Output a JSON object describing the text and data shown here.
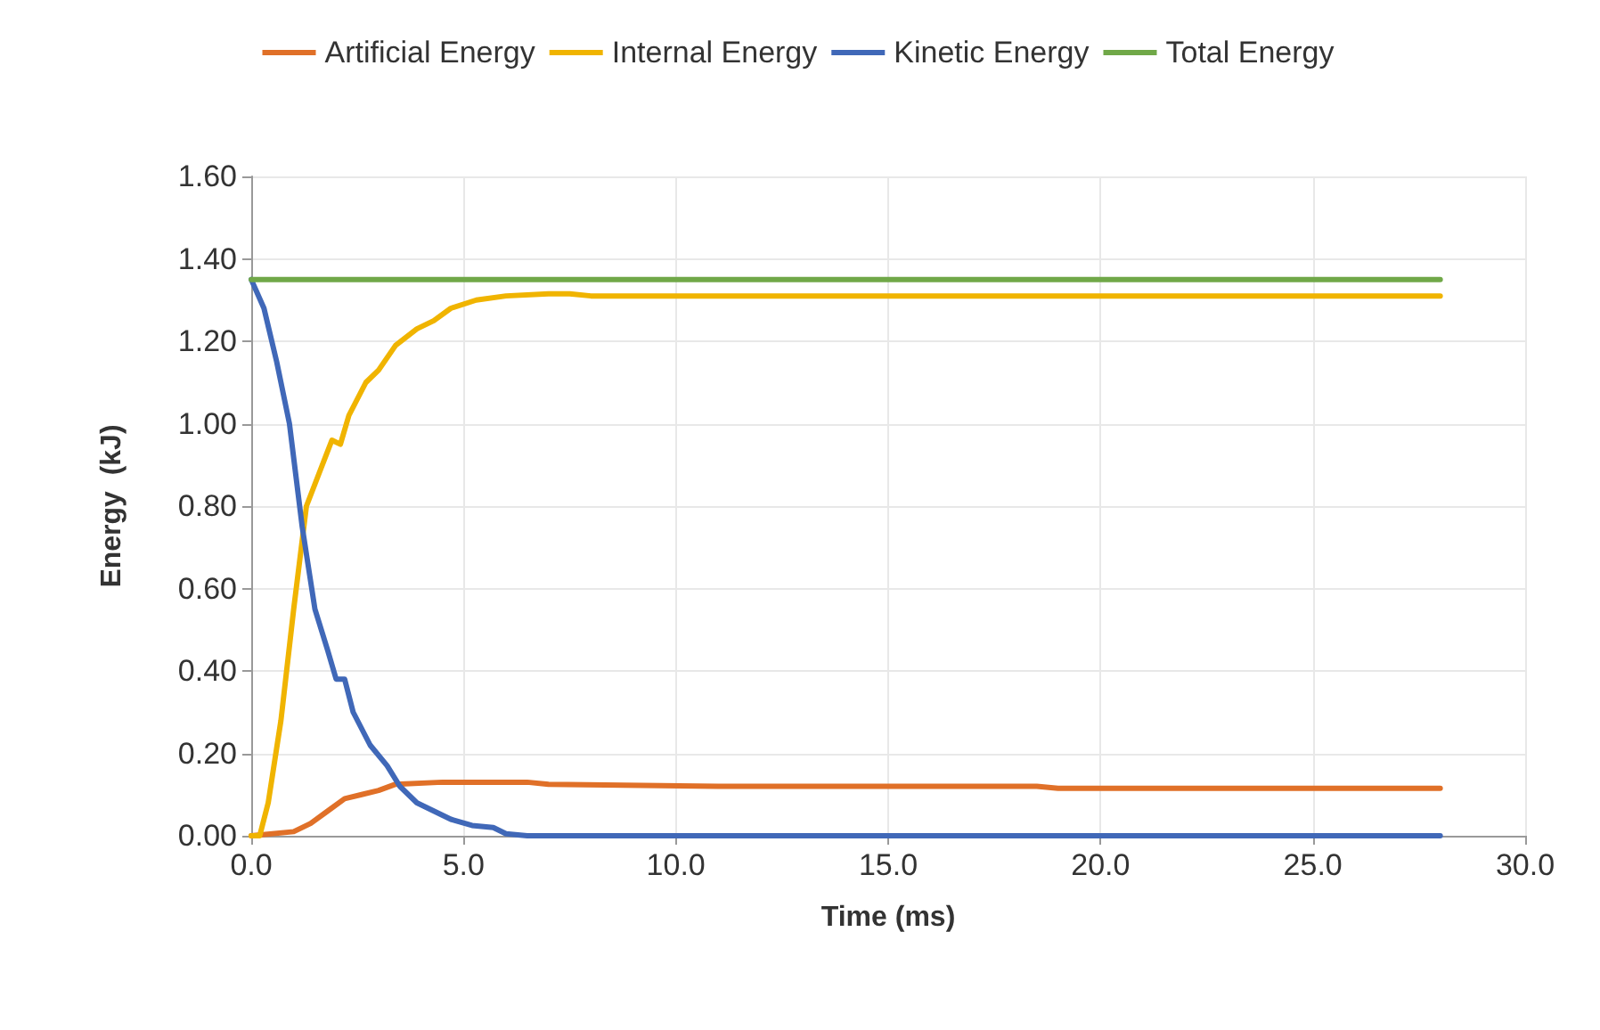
{
  "chart_data": {
    "type": "line",
    "xlabel": "Time (ms)",
    "ylabel": "Energy  (kJ)",
    "legend": "top",
    "grid": true,
    "marker": "none",
    "line_style": "solid",
    "xlim": [
      0,
      30
    ],
    "xticks": [
      {
        "value": 0,
        "label": "0.0"
      },
      {
        "value": 5,
        "label": "5.0"
      },
      {
        "value": 10,
        "label": "10.0"
      },
      {
        "value": 15,
        "label": "15.0"
      },
      {
        "value": 20,
        "label": "20.0"
      },
      {
        "value": 25,
        "label": "25.0"
      },
      {
        "value": 30,
        "label": "30.0"
      }
    ],
    "ylim": [
      0,
      1.6
    ],
    "yticks": [
      {
        "value": 0,
        "label": "0.00"
      },
      {
        "value": 0.2,
        "label": "0.20"
      },
      {
        "value": 0.4,
        "label": "0.40"
      },
      {
        "value": 0.6,
        "label": "0.60"
      },
      {
        "value": 0.8,
        "label": "0.80"
      },
      {
        "value": 1,
        "label": "1.00"
      },
      {
        "value": 1.2,
        "label": "1.20"
      },
      {
        "value": 1.4,
        "label": "1.40"
      },
      {
        "value": 1.6,
        "label": "1.60"
      }
    ],
    "series": [
      {
        "name": "Artificial Energy",
        "color": "#e07028",
        "x": [
          0,
          1,
          1.4,
          1.8,
          2.2,
          2.6,
          3,
          3.4,
          4.5,
          6.5,
          7,
          11,
          18.5,
          19,
          28
        ],
        "values": [
          0,
          0.01,
          0.03,
          0.06,
          0.09,
          0.1,
          0.11,
          0.125,
          0.13,
          0.13,
          0.125,
          0.12,
          0.12,
          0.115,
          0.115
        ]
      },
      {
        "name": "Internal Energy",
        "color": "#f0b400",
        "x": [
          0,
          0.2,
          0.4,
          0.7,
          1,
          1.3,
          1.6,
          1.9,
          2.1,
          2.3,
          2.7,
          3,
          3.4,
          3.9,
          4.3,
          4.7,
          5.3,
          6,
          7,
          7.5,
          8,
          28
        ],
        "values": [
          0,
          0,
          0.08,
          0.28,
          0.55,
          0.8,
          0.88,
          0.96,
          0.95,
          1.02,
          1.1,
          1.13,
          1.19,
          1.23,
          1.25,
          1.28,
          1.3,
          1.31,
          1.315,
          1.315,
          1.31,
          1.31
        ]
      },
      {
        "name": "Kinetic Energy",
        "color": "#4068b8",
        "x": [
          0,
          0.3,
          0.6,
          0.9,
          1.2,
          1.5,
          1.8,
          2,
          2.2,
          2.4,
          2.8,
          3.2,
          3.5,
          3.9,
          4.3,
          4.7,
          5.2,
          5.7,
          6,
          6.5,
          28
        ],
        "values": [
          1.35,
          1.28,
          1.15,
          1,
          0.75,
          0.55,
          0.45,
          0.38,
          0.38,
          0.3,
          0.22,
          0.17,
          0.12,
          0.08,
          0.06,
          0.04,
          0.025,
          0.02,
          0.005,
          0,
          0
        ]
      },
      {
        "name": "Total Energy",
        "color": "#70a848",
        "x": [
          0,
          28
        ],
        "values": [
          1.35,
          1.35
        ]
      }
    ]
  }
}
